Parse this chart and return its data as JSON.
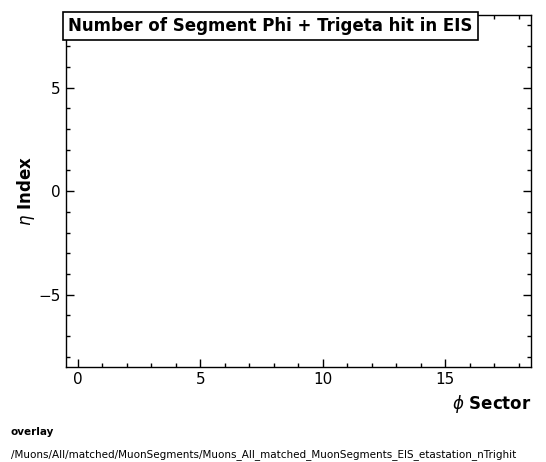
{
  "title": "Number of Segment Phi + Trigeta hit in EIS",
  "xlabel": "$\\phi$ Sector",
  "ylabel": "$\\eta$ Index",
  "xlim": [
    -0.5,
    18.5
  ],
  "ylim": [
    -8.5,
    8.5
  ],
  "xticks": [
    0,
    5,
    10,
    15
  ],
  "yticks": [
    -5,
    0,
    5
  ],
  "footer_line1": "overlay",
  "footer_line2": "/Muons/All/matched/MuonSegments/Muons_All_matched_MuonSegments_EIS_etastation_nTrighit",
  "bg_color": "#ffffff",
  "title_fontsize": 12,
  "axis_label_fontsize": 12,
  "tick_fontsize": 11,
  "footer_fontsize": 7.5
}
